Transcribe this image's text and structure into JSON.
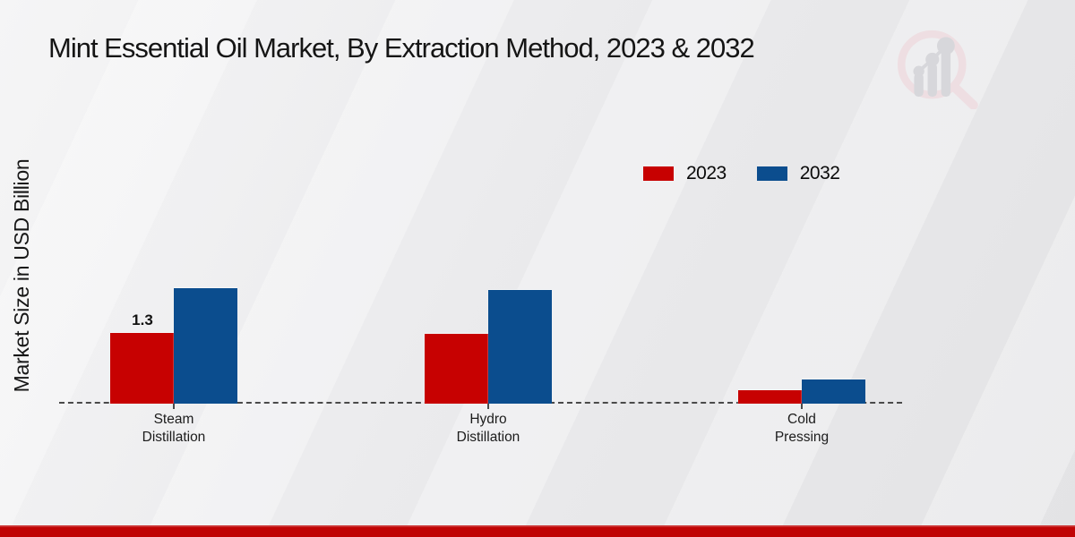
{
  "title": "Mint Essential Oil Market, By Extraction Method, 2023 & 2032",
  "y_axis_label": "Market Size in USD Billion",
  "legend": [
    {
      "label": "2023",
      "color": "#c70101"
    },
    {
      "label": "2032",
      "color": "#0b4d8e"
    }
  ],
  "footer": {
    "color": "#c00404"
  },
  "watermark": {
    "icon": "magnifier-bar-chart-logo",
    "ring_color": "#eedde1",
    "bars_color": "#d5d5d9"
  },
  "chart_data": {
    "type": "bar",
    "categories": [
      "Steam Distillation",
      "Hydro Distillation",
      "Cold Pressing"
    ],
    "series": [
      {
        "name": "2023",
        "color": "#c70101",
        "values": [
          1.3,
          1.28,
          0.25
        ]
      },
      {
        "name": "2032",
        "color": "#0b4d8e",
        "values": [
          2.12,
          2.09,
          0.44
        ]
      }
    ],
    "data_labels": [
      {
        "series_index": 0,
        "category_index": 0,
        "text": "1.3"
      }
    ],
    "title": "Mint Essential Oil Market, By Extraction Method, 2023 & 2032",
    "xlabel": "",
    "ylabel": "Market Size in USD Billion",
    "ylim": [
      0,
      2.5
    ],
    "grid": false,
    "legend_position": "upper-right",
    "baseline_style": "dashed"
  }
}
